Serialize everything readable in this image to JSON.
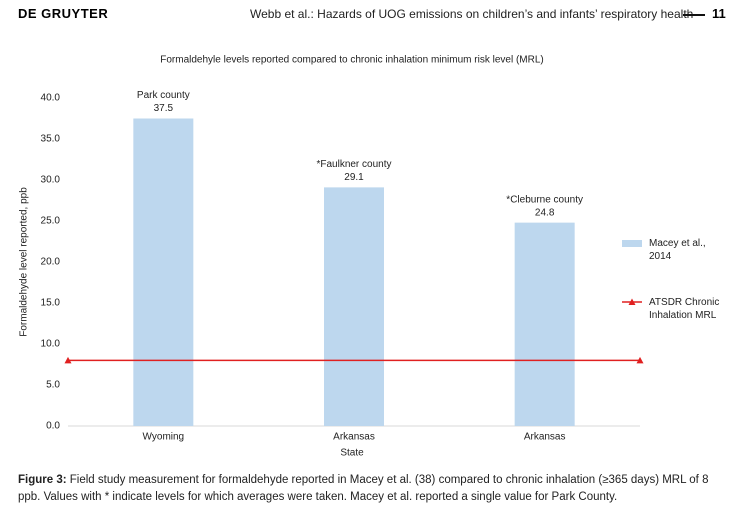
{
  "header": {
    "publisher": "DE GRUYTER",
    "running_title": "Webb et al.: Hazards of UOG emissions on children’s and infants’ respiratory health",
    "page": "11"
  },
  "chart_data": {
    "type": "bar",
    "title": "Formaldehyle levels reported compared to chronic inhalation minimum risk level (MRL)",
    "x_label": "State",
    "y_label": "Formaldehyde level reported, ppb",
    "categories": [
      "Wyoming",
      "Arkansas",
      "Arkansas"
    ],
    "bar_labels": [
      "Park county",
      "*Faulkner county",
      "*Cleburne county"
    ],
    "series": [
      {
        "name": "Macey et al., 2014",
        "color": "#bdd7ee",
        "values": [
          37.5,
          29.1,
          24.8
        ]
      }
    ],
    "reference_line": {
      "name": "ATSDR Chronic Inhalation MRL",
      "color": "#e02020",
      "value": 8
    },
    "ylim": [
      0,
      40
    ],
    "yticks": [
      {
        "value": 0,
        "label": "0.0"
      },
      {
        "value": 5,
        "label": "5.0"
      },
      {
        "value": 10,
        "label": "10.0"
      },
      {
        "value": 15,
        "label": "15.0"
      },
      {
        "value": 20,
        "label": "20.0"
      },
      {
        "value": 25,
        "label": "25.0"
      },
      {
        "value": 30,
        "label": "30.0"
      },
      {
        "value": 35,
        "label": "35.0"
      },
      {
        "value": 40,
        "label": "40.0"
      }
    ],
    "legend": "right"
  },
  "caption": {
    "label": "Figure 3:",
    "text": "Field study measurement for formaldehyde reported in Macey et al. (38) compared to chronic inhalation (≥365 days) MRL of 8 ppb. Values with * indicate levels for which averages were taken. Macey et al. reported a single value for Park County."
  }
}
